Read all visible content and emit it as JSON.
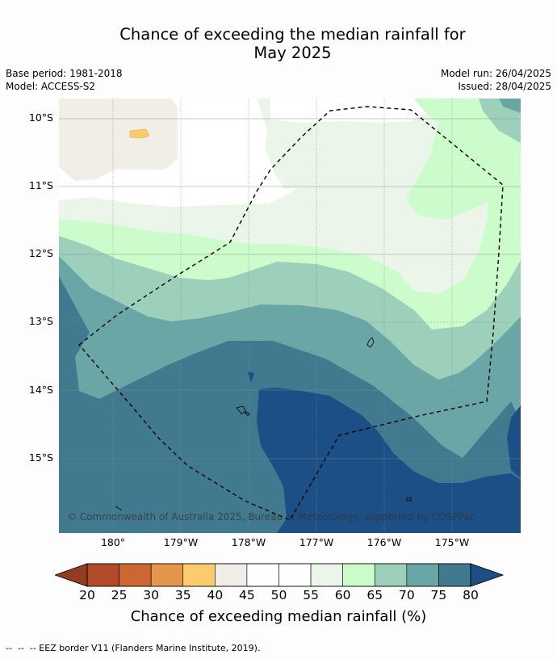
{
  "title_line1": "Chance of exceeding the median rainfall for",
  "title_line2": "May 2025",
  "meta": {
    "base_period": "Base period: 1981-2018",
    "model": "Model: ACCESS-S2",
    "model_run": "Model run: 26/04/2025",
    "issued": "Issued: 28/04/2025"
  },
  "map": {
    "lat_labels": [
      "10°S",
      "11°S",
      "12°S",
      "13°S",
      "14°S",
      "15°S"
    ],
    "lon_labels": [
      "180°",
      "179°W",
      "178°W",
      "177°W",
      "176°W",
      "175°W"
    ],
    "copyright": "© Commonwealth of Australia 2025, Bureau of Meteorology, supported by COSPPac",
    "border_style": "dashed",
    "grid": true
  },
  "colorbar": {
    "ticks": [
      "20",
      "25",
      "30",
      "35",
      "40",
      "45",
      "50",
      "55",
      "60",
      "65",
      "70",
      "75",
      "80"
    ],
    "colors": [
      "#b24a27",
      "#cc6634",
      "#e3964c",
      "#fccc6c",
      "#f1ede7",
      "#ffffff",
      "#ffffff",
      "#ebf5ea",
      "#cdfccc",
      "#9dd0bb",
      "#6ba6a7",
      "#41798f"
    ],
    "under_color": "#923d22",
    "over_color": "#1b4f86",
    "label": "Chance of exceeding median rainfall (%)"
  },
  "footer": "--  --  -- EEZ border V11 (Flanders Marine Institute, 2019)."
}
